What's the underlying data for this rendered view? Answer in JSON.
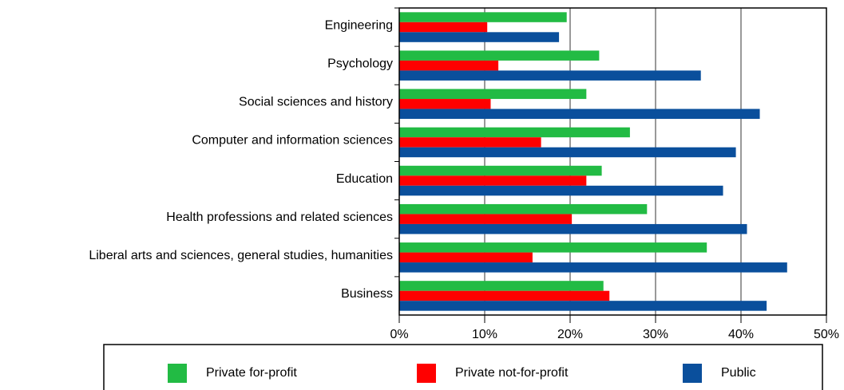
{
  "chart_data": {
    "type": "bar",
    "orientation": "horizontal",
    "categories": [
      "Engineering",
      "Psychology",
      "Social sciences and history",
      "Computer and information sciences",
      "Education",
      "Health professions and related sciences",
      "Liberal arts and sciences, general studies, humanities",
      "Business"
    ],
    "series": [
      {
        "name": "Private for-profit",
        "color": "#22bb44",
        "values": [
          19.6,
          23.4,
          21.9,
          27.0,
          23.7,
          29.0,
          36.0,
          23.9
        ]
      },
      {
        "name": "Private not-for-profit",
        "color": "#ff0000",
        "values": [
          10.3,
          11.6,
          10.7,
          16.6,
          21.9,
          20.2,
          15.6,
          24.6
        ]
      },
      {
        "name": "Public",
        "color": "#0a4f9c",
        "values": [
          18.7,
          35.3,
          42.2,
          39.4,
          37.9,
          40.7,
          45.4,
          43.0
        ]
      }
    ],
    "xlim": [
      0,
      50
    ],
    "xticks": [
      {
        "value": 0,
        "label": "0%"
      },
      {
        "value": 10,
        "label": "10%"
      },
      {
        "value": 20,
        "label": "20%"
      },
      {
        "value": 30,
        "label": "30%"
      },
      {
        "value": 40,
        "label": "40%"
      },
      {
        "value": 50,
        "label": "50%"
      }
    ],
    "grid": true,
    "legend": "bottom"
  }
}
